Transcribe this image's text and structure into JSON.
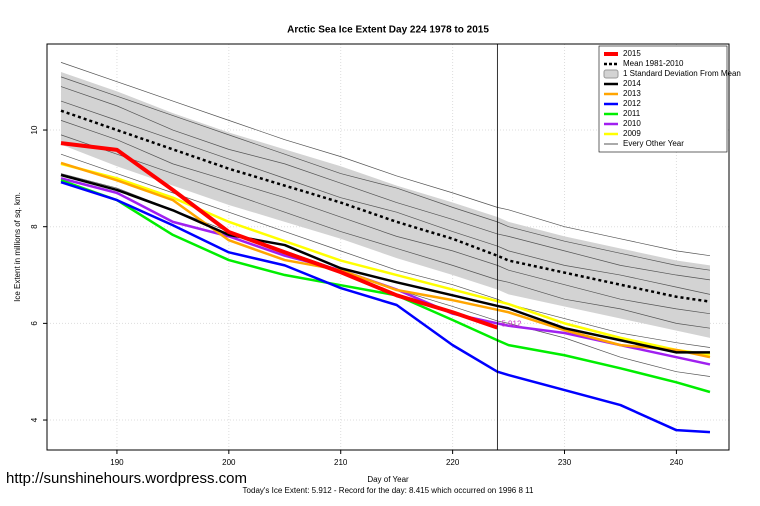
{
  "chart_data": {
    "type": "line",
    "title": "Arctic Sea Ice Extent Day 224 1978 to 2015",
    "x_label": "Day of Year",
    "y_label": "Ice Extent in millions of sq. km.",
    "footer": "Today's Ice Extent: 5.912  -  Record for the day: 8.415 which occurred on 1996 8 11",
    "watermark": "http://sunshinehours.wordpress.com",
    "annotation": "5.912",
    "vline": 224,
    "xlim": [
      183.75,
      244.7
    ],
    "ylim": [
      3.38,
      11.78
    ],
    "xticks": [
      190,
      200,
      210,
      220,
      230,
      240
    ],
    "yticks": [
      4,
      6,
      8,
      10
    ],
    "grid": true,
    "legend": "top-right",
    "x": [
      185,
      190,
      195,
      200,
      205,
      210,
      215,
      220,
      224,
      225,
      230,
      235,
      240,
      243
    ],
    "std_band": {
      "name": "1 Standard Deviation From Mean",
      "color": "#d3d3d3",
      "upper": [
        11.2,
        10.8,
        10.35,
        9.95,
        9.6,
        9.25,
        8.85,
        8.5,
        8.2,
        8.1,
        7.8,
        7.55,
        7.3,
        7.2
      ],
      "lower": [
        9.7,
        9.25,
        8.85,
        8.45,
        8.1,
        7.75,
        7.35,
        7.0,
        6.7,
        6.6,
        6.35,
        6.1,
        5.85,
        5.7
      ]
    },
    "other_years": {
      "name": "Every Other Year",
      "color": "#555555",
      "lines": [
        [
          11.4,
          11.0,
          10.6,
          10.2,
          9.8,
          9.45,
          9.05,
          8.7,
          8.4,
          8.35,
          8.0,
          7.75,
          7.5,
          7.4
        ],
        [
          11.1,
          10.7,
          10.3,
          9.9,
          9.5,
          9.1,
          8.8,
          8.4,
          8.1,
          8.0,
          7.7,
          7.45,
          7.2,
          7.1
        ],
        [
          10.9,
          10.5,
          10.0,
          9.6,
          9.3,
          8.9,
          8.5,
          8.15,
          7.85,
          7.8,
          7.5,
          7.2,
          7.0,
          6.9
        ],
        [
          10.6,
          10.2,
          9.8,
          9.4,
          9.0,
          8.6,
          8.3,
          7.9,
          7.6,
          7.5,
          7.2,
          7.0,
          6.75,
          6.6
        ],
        [
          10.2,
          9.8,
          9.3,
          8.95,
          8.6,
          8.2,
          7.8,
          7.5,
          7.2,
          7.1,
          6.8,
          6.5,
          6.3,
          6.2
        ],
        [
          9.9,
          9.5,
          9.1,
          8.7,
          8.3,
          7.9,
          7.55,
          7.2,
          6.9,
          6.85,
          6.5,
          6.3,
          6.0,
          5.9
        ],
        [
          9.5,
          9.1,
          8.7,
          8.3,
          7.9,
          7.5,
          7.1,
          6.8,
          6.5,
          6.4,
          6.1,
          5.8,
          5.6,
          5.5
        ],
        [
          9.1,
          8.8,
          8.35,
          7.9,
          7.5,
          7.1,
          6.7,
          6.35,
          6.05,
          6.0,
          5.7,
          5.3,
          5.0,
          4.9
        ]
      ]
    },
    "mean": {
      "name": "Mean 1981-2010",
      "color": "#000000",
      "values": [
        10.4,
        10.0,
        9.6,
        9.2,
        8.85,
        8.5,
        8.1,
        7.75,
        7.4,
        7.3,
        7.05,
        6.8,
        6.55,
        6.45
      ]
    },
    "series": [
      {
        "name": "2015",
        "color": "#ff0000",
        "values": [
          9.73,
          9.59,
          8.76,
          7.89,
          7.47,
          7.06,
          6.58,
          6.23,
          5.912,
          null,
          null,
          null,
          null,
          null
        ]
      },
      {
        "name": "2014",
        "color": "#000000",
        "values": [
          9.07,
          8.76,
          8.34,
          7.83,
          7.62,
          7.14,
          6.85,
          6.58,
          6.36,
          6.31,
          5.9,
          5.65,
          5.4,
          5.4
        ]
      },
      {
        "name": "2013",
        "color": "#ffa500",
        "values": [
          9.32,
          8.96,
          8.55,
          7.72,
          7.31,
          7.1,
          6.69,
          6.48,
          6.28,
          6.23,
          5.86,
          5.55,
          5.45,
          5.3
        ]
      },
      {
        "name": "2012",
        "color": "#0000ff",
        "values": [
          8.92,
          8.55,
          8.03,
          7.47,
          7.2,
          6.73,
          6.38,
          5.55,
          5.0,
          4.93,
          4.62,
          4.31,
          3.79,
          3.75
        ]
      },
      {
        "name": "2011",
        "color": "#00ee00",
        "values": [
          8.96,
          8.55,
          7.83,
          7.31,
          7.0,
          6.79,
          6.58,
          6.07,
          5.65,
          5.55,
          5.34,
          5.07,
          4.78,
          4.58
        ]
      },
      {
        "name": "2010",
        "color": "#a020f0",
        "values": [
          9.0,
          8.7,
          8.1,
          7.8,
          7.4,
          7.1,
          6.7,
          6.2,
          6.0,
          5.95,
          5.8,
          5.55,
          5.3,
          5.15
        ]
      },
      {
        "name": "2009",
        "color": "#ffff00",
        "values": [
          9.3,
          9.0,
          8.6,
          8.1,
          7.7,
          7.3,
          7.0,
          6.7,
          6.46,
          6.4,
          6.0,
          5.7,
          5.45,
          5.35
        ]
      }
    ]
  }
}
